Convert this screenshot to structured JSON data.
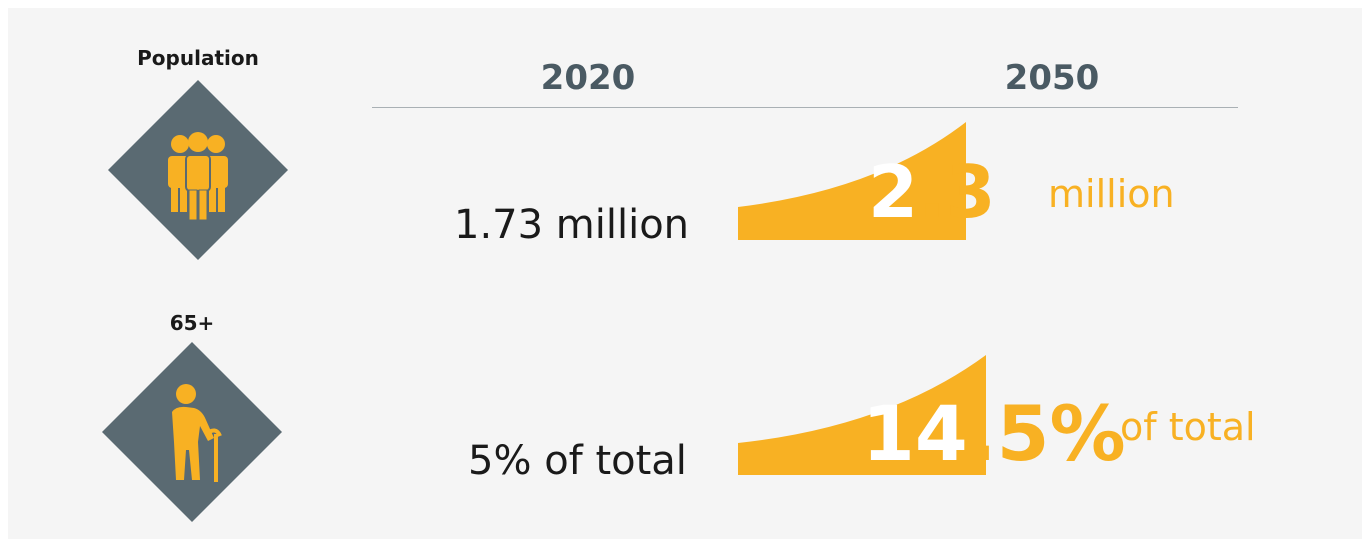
{
  "colors": {
    "background": "#f5f5f5",
    "diamond": "#5a6a72",
    "accent": "#f8b123",
    "year_text": "#4a5a63",
    "dark_text": "#1a1a1a"
  },
  "headers": {
    "year_start": "2020",
    "year_end": "2050"
  },
  "rows": [
    {
      "label": "Population",
      "icon": "people-group-icon",
      "start_value": "1.73",
      "start_unit": "million",
      "end_value_lead": "2",
      "end_value_rest": ".3",
      "end_unit": "million"
    },
    {
      "label": "65+",
      "icon": "elderly-person-icon",
      "start_value": "5%",
      "start_unit": "of total",
      "end_value_lead": "14",
      "end_value_rest": ".5%",
      "end_unit": "of total"
    }
  ]
}
